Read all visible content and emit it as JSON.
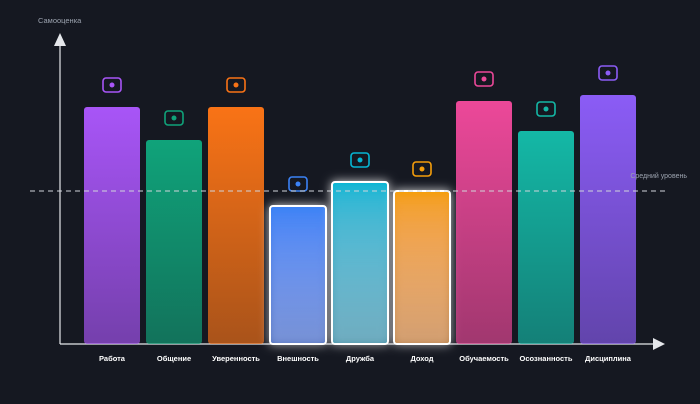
{
  "chart_data": {
    "type": "bar",
    "y_label": "Самооценка",
    "categories": [
      "Работа",
      "Общение",
      "Уверенность",
      "Внешность",
      "Дружба",
      "Доход",
      "Обучаемость",
      "Осознанность",
      "Дисциплина"
    ],
    "values": [
      79,
      68,
      79,
      46,
      54,
      51,
      81,
      71,
      83
    ],
    "colors": [
      "#a855f7",
      "#10a37a",
      "#f97316",
      "#3b82f6",
      "#06b6d4",
      "#f59e0b",
      "#ec4899",
      "#14b8a6",
      "#8b5cf6"
    ],
    "highlighted": [
      false,
      false,
      false,
      true,
      true,
      true,
      false,
      false,
      false
    ],
    "ylim": [
      0,
      100
    ],
    "reference_line": {
      "label": "Средний уровень",
      "value": 51
    }
  }
}
